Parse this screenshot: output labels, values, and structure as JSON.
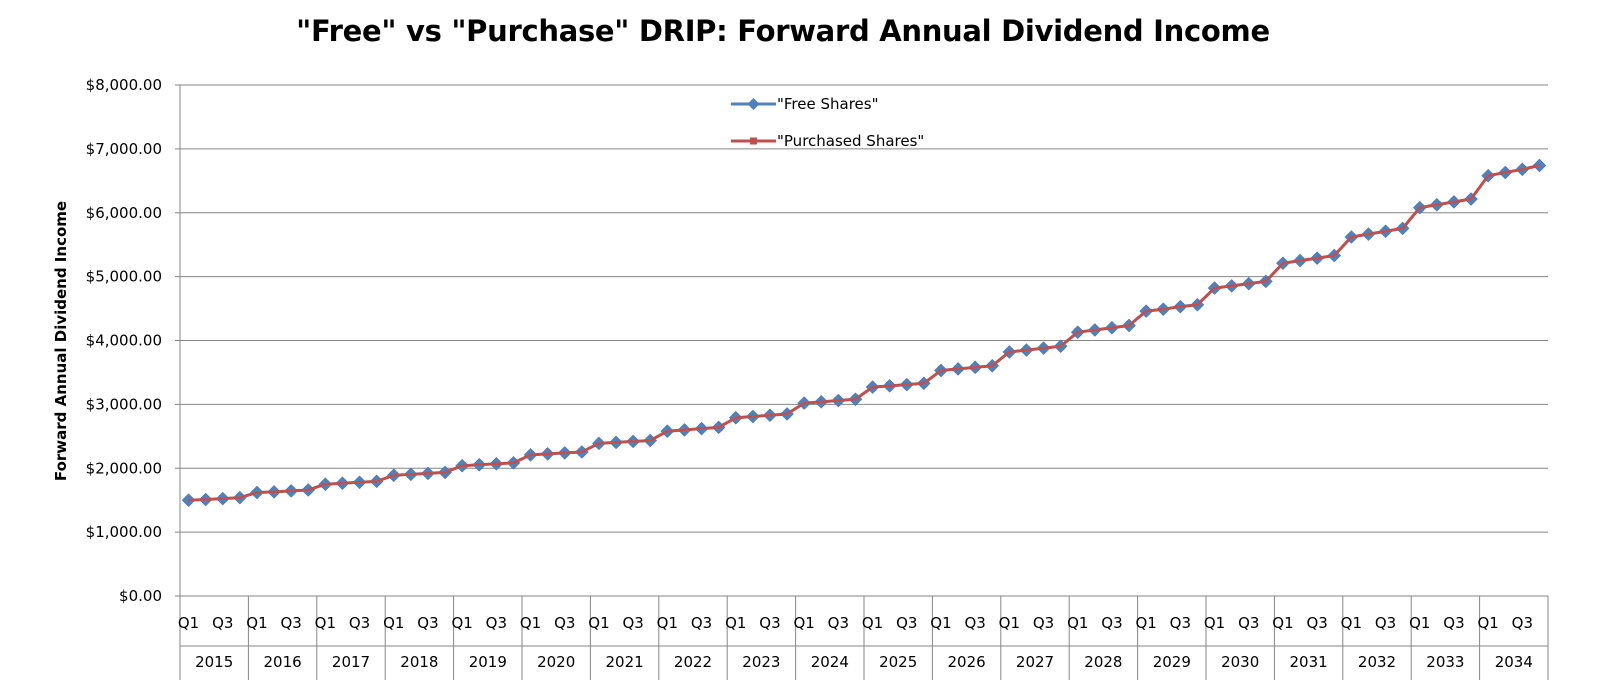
{
  "chart_data": {
    "type": "line",
    "title": "\"Free\" vs \"Purchase\" DRIP: Forward Annual Dividend Income",
    "xlabel": "",
    "ylabel": "Forward Annual Dividend Income",
    "ylim": [
      0,
      8000
    ],
    "yticks": [
      "$0.00",
      "$1,000.00",
      "$2,000.00",
      "$3,000.00",
      "$4,000.00",
      "$5,000.00",
      "$6,000.00",
      "$7,000.00",
      "$8,000.00"
    ],
    "years": [
      "2015",
      "2016",
      "2017",
      "2018",
      "2019",
      "2020",
      "2021",
      "2022",
      "2023",
      "2024",
      "2025",
      "2026",
      "2027",
      "2028",
      "2029",
      "2030",
      "2031",
      "2032",
      "2033",
      "2034"
    ],
    "quarter_labels": [
      "Q1",
      "Q3"
    ],
    "grid": true,
    "legend_position": "top-center",
    "series": [
      {
        "name": "\"Free Shares\"",
        "color": "#4F81BD",
        "marker": "diamond",
        "values": [
          1500,
          1510,
          1525,
          1540,
          1620,
          1630,
          1645,
          1660,
          1750,
          1765,
          1780,
          1795,
          1890,
          1905,
          1920,
          1935,
          2040,
          2055,
          2070,
          2085,
          2210,
          2225,
          2240,
          2255,
          2390,
          2405,
          2420,
          2435,
          2580,
          2600,
          2620,
          2640,
          2790,
          2810,
          2830,
          2850,
          3020,
          3040,
          3060,
          3080,
          3270,
          3290,
          3310,
          3330,
          3530,
          3555,
          3580,
          3605,
          3820,
          3850,
          3880,
          3910,
          4130,
          4165,
          4200,
          4235,
          4460,
          4490,
          4530,
          4560,
          4820,
          4855,
          4890,
          4925,
          5210,
          5250,
          5290,
          5330,
          5620,
          5665,
          5710,
          5755,
          6080,
          6125,
          6170,
          6215,
          6580,
          6630,
          6680,
          6740
        ]
      },
      {
        "name": "\"Purchased Shares\"",
        "color": "#C0504D",
        "marker": "square",
        "values": [
          1500,
          1510,
          1525,
          1540,
          1620,
          1630,
          1645,
          1660,
          1750,
          1765,
          1780,
          1795,
          1890,
          1905,
          1920,
          1935,
          2040,
          2055,
          2070,
          2085,
          2210,
          2225,
          2240,
          2255,
          2390,
          2405,
          2420,
          2435,
          2580,
          2600,
          2620,
          2640,
          2790,
          2810,
          2830,
          2850,
          3020,
          3040,
          3060,
          3080,
          3270,
          3290,
          3310,
          3330,
          3530,
          3555,
          3580,
          3605,
          3820,
          3850,
          3880,
          3910,
          4130,
          4165,
          4200,
          4235,
          4460,
          4490,
          4530,
          4560,
          4820,
          4855,
          4890,
          4925,
          5210,
          5250,
          5290,
          5330,
          5620,
          5665,
          5710,
          5755,
          6080,
          6125,
          6170,
          6215,
          6580,
          6630,
          6680,
          6740
        ]
      }
    ]
  }
}
